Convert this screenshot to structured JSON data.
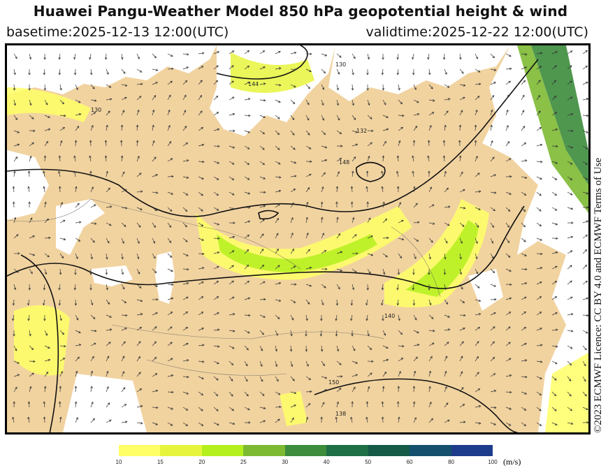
{
  "header": {
    "title": "Huawei Pangu-Weather Model 850 hPa geopotential height & wind",
    "basetime": "basetime:2025-12-13 12:00(UTC)",
    "validtime": "validtime:2025-12-22 12:00(UTC)"
  },
  "side_credit": "©2023 ECMWF Licence: CC BY 4.0 and ECMWF Terms of Use",
  "colorbar": {
    "unit": "(m/s)",
    "ticks": [
      "10",
      "15",
      "20",
      "25",
      "30",
      "40",
      "50",
      "60",
      "80",
      "100"
    ],
    "colors": [
      "#ffff66",
      "#e6f53c",
      "#b4f01e",
      "#7dba32",
      "#3c8c3c",
      "#1e6e46",
      "#145a46",
      "#14506e",
      "#1e3c8c",
      "#2832a0"
    ]
  },
  "map": {
    "contour_labels": [
      "130",
      "132",
      "144",
      "148",
      "150",
      "140",
      "138",
      "130"
    ],
    "colors": {
      "land": "#f1d3a0",
      "sea": "#ffffff",
      "wind_10": "#ffff66",
      "wind_15": "#e6f53c",
      "wind_20": "#b4f01e",
      "wind_30": "#3c8c3c",
      "wind_40": "#1e6e46"
    }
  }
}
